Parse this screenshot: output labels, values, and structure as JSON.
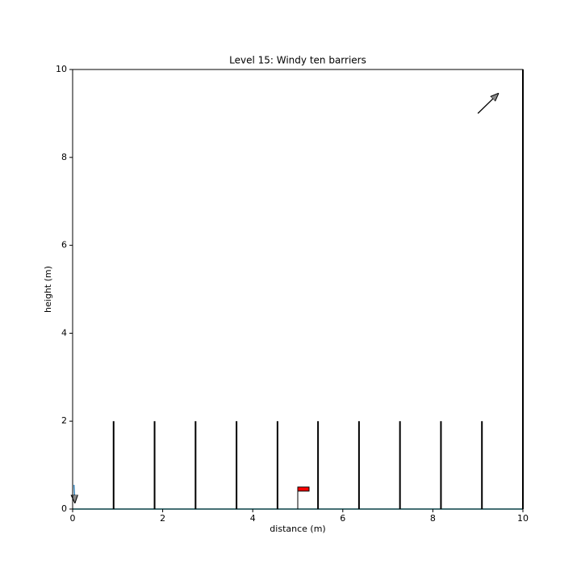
{
  "chart_data": {
    "type": "game",
    "title": "Level 15: Windy ten barriers",
    "xlabel": "distance (m)",
    "ylabel": "height (m)",
    "xlim": [
      0,
      10
    ],
    "ylim": [
      0,
      10
    ],
    "xticks": [
      0,
      2,
      4,
      6,
      8,
      10
    ],
    "yticks": [
      0,
      2,
      4,
      6,
      8,
      10
    ],
    "barriers": {
      "x": [
        0.91,
        1.82,
        2.73,
        3.64,
        4.55,
        5.45,
        6.36,
        7.27,
        8.18,
        9.09
      ],
      "height": 2,
      "color": "#000000"
    },
    "flag": {
      "x": 5,
      "height": 0.5,
      "color": "#ff0000"
    },
    "wind": {
      "x": [
        9,
        9.45
      ],
      "y": [
        9,
        9.45
      ]
    },
    "launch": {
      "x": [
        0.03,
        0.05
      ],
      "y": [
        0.55,
        0.15
      ],
      "color": "#1f77b4"
    },
    "ground_color": "#17becf"
  }
}
